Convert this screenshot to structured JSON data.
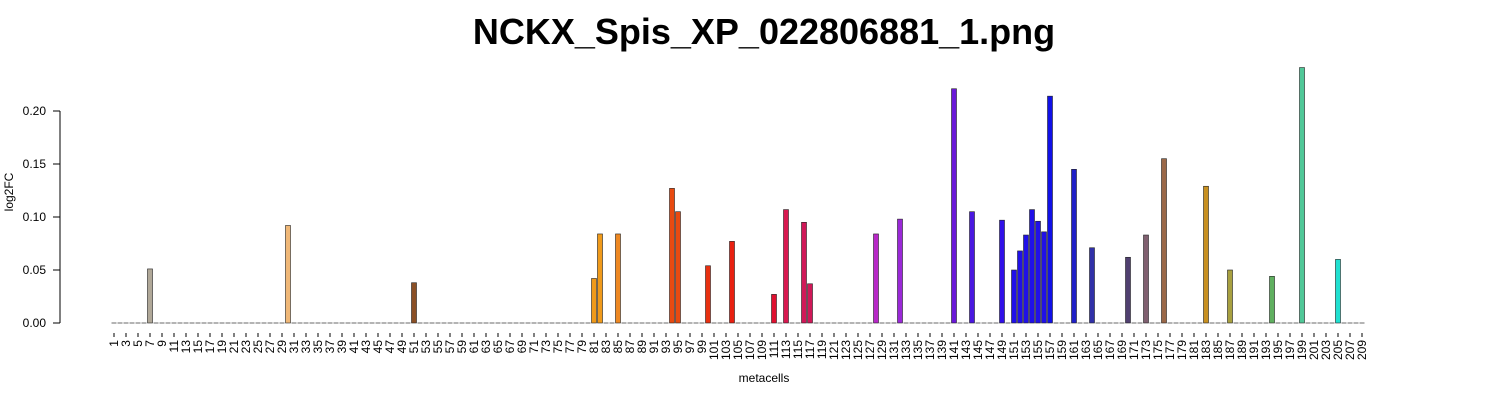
{
  "chart_data": {
    "type": "bar",
    "title": "NCKX_Spis_XP_022806881_1.png",
    "xlabel": "metacells",
    "ylabel": "log2FC",
    "xlim": [
      1,
      209
    ],
    "ylim": [
      0,
      0.25
    ],
    "y_ticks": [
      "0.00",
      "0.05",
      "0.10",
      "0.15",
      "0.20"
    ],
    "x_ticks": [
      "1",
      "3",
      "5",
      "7",
      "9",
      "11",
      "13",
      "15",
      "17",
      "19",
      "21",
      "23",
      "25",
      "27",
      "29",
      "31",
      "33",
      "35",
      "37",
      "39",
      "41",
      "43",
      "45",
      "47",
      "49",
      "51",
      "53",
      "55",
      "57",
      "59",
      "61",
      "63",
      "65",
      "67",
      "69",
      "71",
      "73",
      "75",
      "77",
      "79",
      "81",
      "83",
      "85",
      "87",
      "89",
      "91",
      "93",
      "95",
      "97",
      "99",
      "101",
      "103",
      "105",
      "107",
      "109",
      "111",
      "113",
      "115",
      "117",
      "119",
      "121",
      "123",
      "125",
      "127",
      "129",
      "131",
      "133",
      "135",
      "137",
      "139",
      "141",
      "143",
      "145",
      "147",
      "149",
      "151",
      "153",
      "155",
      "157",
      "159",
      "161",
      "163",
      "165",
      "167",
      "169",
      "171",
      "173",
      "175",
      "177",
      "179",
      "181",
      "183",
      "185",
      "187",
      "189",
      "191",
      "193",
      "195",
      "197",
      "199",
      "201",
      "203",
      "205",
      "207",
      "209"
    ],
    "bars": [
      {
        "x": 7,
        "value": 0.051,
        "color": "#b0a898"
      },
      {
        "x": 30,
        "value": 0.092,
        "color": "#f0b878"
      },
      {
        "x": 51,
        "value": 0.038,
        "color": "#8b5026"
      },
      {
        "x": 81,
        "value": 0.042,
        "color": "#f09a1a"
      },
      {
        "x": 82,
        "value": 0.084,
        "color": "#f09a1a"
      },
      {
        "x": 85,
        "value": 0.084,
        "color": "#ee8822"
      },
      {
        "x": 94,
        "value": 0.127,
        "color": "#e84a10"
      },
      {
        "x": 95,
        "value": 0.105,
        "color": "#e84a10"
      },
      {
        "x": 100,
        "value": 0.054,
        "color": "#e83010"
      },
      {
        "x": 104,
        "value": 0.077,
        "color": "#e82010"
      },
      {
        "x": 111,
        "value": 0.027,
        "color": "#e01030"
      },
      {
        "x": 113,
        "value": 0.107,
        "color": "#d81850"
      },
      {
        "x": 116,
        "value": 0.095,
        "color": "#d01858"
      },
      {
        "x": 117,
        "value": 0.037,
        "color": "#d01858"
      },
      {
        "x": 128,
        "value": 0.084,
        "color": "#b828c8"
      },
      {
        "x": 132,
        "value": 0.098,
        "color": "#9a28d8"
      },
      {
        "x": 141,
        "value": 0.221,
        "color": "#6a18d8"
      },
      {
        "x": 144,
        "value": 0.105,
        "color": "#4a18e0"
      },
      {
        "x": 149,
        "value": 0.097,
        "color": "#3010e8"
      },
      {
        "x": 151,
        "value": 0.05,
        "color": "#2010e8"
      },
      {
        "x": 152,
        "value": 0.068,
        "color": "#2010e8"
      },
      {
        "x": 153,
        "value": 0.083,
        "color": "#2010e8"
      },
      {
        "x": 154,
        "value": 0.107,
        "color": "#2010e8"
      },
      {
        "x": 155,
        "value": 0.096,
        "color": "#2010e8"
      },
      {
        "x": 156,
        "value": 0.086,
        "color": "#2010e8"
      },
      {
        "x": 157,
        "value": 0.214,
        "color": "#1010e8"
      },
      {
        "x": 161,
        "value": 0.145,
        "color": "#2020c8"
      },
      {
        "x": 164,
        "value": 0.071,
        "color": "#3030a8"
      },
      {
        "x": 170,
        "value": 0.062,
        "color": "#504070"
      },
      {
        "x": 173,
        "value": 0.083,
        "color": "#806070"
      },
      {
        "x": 176,
        "value": 0.155,
        "color": "#9a6848"
      },
      {
        "x": 183,
        "value": 0.129,
        "color": "#c89020"
      },
      {
        "x": 187,
        "value": 0.05,
        "color": "#a8a040"
      },
      {
        "x": 194,
        "value": 0.044,
        "color": "#60b060"
      },
      {
        "x": 199,
        "value": 0.241,
        "color": "#50c898"
      },
      {
        "x": 205,
        "value": 0.06,
        "color": "#20e0d0"
      }
    ]
  }
}
